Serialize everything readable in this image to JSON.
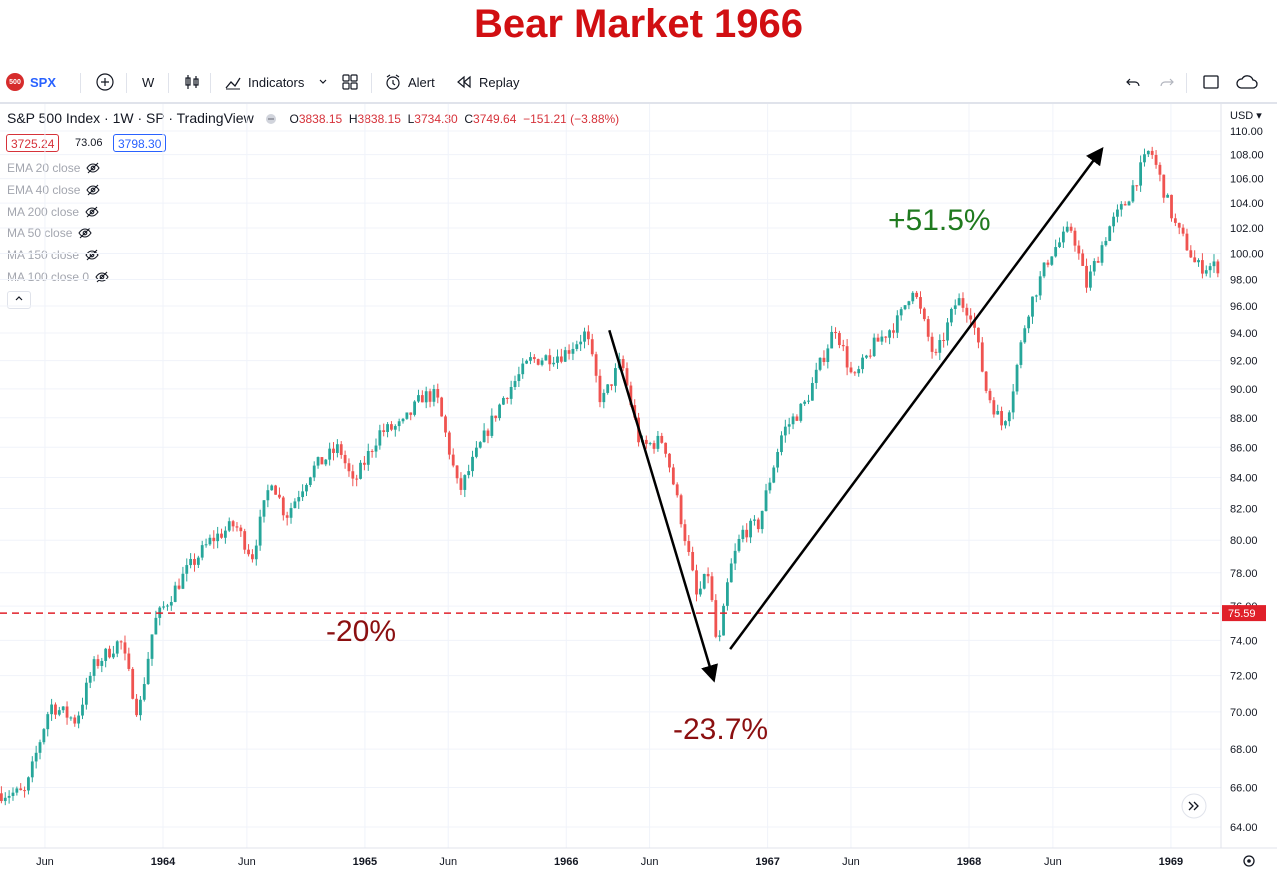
{
  "headline": "Bear Market 1966",
  "toolbar": {
    "symbol_badge": "500",
    "symbol": "SPX",
    "interval": "W",
    "indicators_label": "Indicators",
    "alert_label": "Alert",
    "replay_label": "Replay",
    "icons": [
      "add-symbol-icon",
      "bar-style-icon",
      "indicators-icon",
      "templates-icon",
      "alert-icon",
      "replay-icon",
      "undo-icon",
      "redo-icon",
      "fullscreen-icon",
      "cloud-icon"
    ]
  },
  "legend": {
    "title": "S&P 500 Index · 1W · SP · TradingView",
    "o_label": "O",
    "o": "3838.15",
    "h_label": "H",
    "h": "3838.15",
    "l_label": "L",
    "l": "3734.30",
    "c_label": "C",
    "c": "3749.64",
    "change": "−151.21 (−3.88%)",
    "bid": "3725.24",
    "spread": "73.06",
    "ask": "3798.30"
  },
  "indicators": [
    "EMA 20 close",
    "EMA 40 close",
    "MA 200 close",
    "MA 50 close",
    "MA 150 close",
    "MA 100 close 0"
  ],
  "axis": {
    "currency": "USD",
    "price_ticks": [
      "110.00",
      "108.00",
      "106.00",
      "104.00",
      "102.00",
      "100.00",
      "98.00",
      "96.00",
      "94.00",
      "92.00",
      "90.00",
      "88.00",
      "86.00",
      "84.00",
      "82.00",
      "80.00",
      "78.00",
      "76.00",
      "74.00",
      "72.00",
      "70.00",
      "68.00",
      "66.00",
      "64.00"
    ],
    "time_ticks": [
      "Jun",
      "1964",
      "Jun",
      "1965",
      "Jun",
      "1966",
      "Jun",
      "1967",
      "Jun",
      "1968",
      "Jun",
      "1969"
    ]
  },
  "annotations": {
    "threshold_label": "-20%",
    "decline_label": "-23.7%",
    "rally_label": "+51.5%",
    "threshold_price": "75.59"
  },
  "colors": {
    "up": "#26a69a",
    "down": "#ef5350",
    "headline": "#d10f12",
    "threshold": "#e0202a",
    "rally": "#1f7a1f",
    "decline": "#8b0f10",
    "symbol": "#2962ff"
  },
  "chart_data": {
    "type": "candlestick",
    "title": "S&P 500 Index · 1W · SP",
    "x_range": [
      "1963-05",
      "1969-02"
    ],
    "ylim": [
      63,
      110.6
    ],
    "yscale": "log",
    "grid": true,
    "threshold_line": 75.59,
    "path": [
      [
        "1963-05-01",
        65.7
      ],
      [
        "1963-06-15",
        70.4
      ],
      [
        "1963-08-01",
        69.5
      ],
      [
        "1963-09-01",
        72.5
      ],
      [
        "1963-10-20",
        74.0
      ],
      [
        "1963-11-22",
        69.8
      ],
      [
        "1963-12-20",
        75.0
      ],
      [
        "1964-02-15",
        78.0
      ],
      [
        "1964-04-01",
        80.0
      ],
      [
        "1964-05-15",
        81.0
      ],
      [
        "1964-06-15",
        79.0
      ],
      [
        "1964-07-20",
        84.0
      ],
      [
        "1964-08-15",
        81.5
      ],
      [
        "1964-10-01",
        84.5
      ],
      [
        "1964-11-20",
        86.0
      ],
      [
        "1964-12-15",
        83.5
      ],
      [
        "1965-02-01",
        87.0
      ],
      [
        "1965-03-15",
        87.5
      ],
      [
        "1965-04-20",
        89.5
      ],
      [
        "1965-05-15",
        89.5
      ],
      [
        "1965-06-25",
        83.0
      ],
      [
        "1965-08-01",
        86.0
      ],
      [
        "1965-09-15",
        89.5
      ],
      [
        "1965-11-01",
        92.0
      ],
      [
        "1966-01-01",
        92.5
      ],
      [
        "1966-02-10",
        94.0
      ],
      [
        "1966-03-10",
        89.0
      ],
      [
        "1966-04-15",
        92.0
      ],
      [
        "1966-05-20",
        86.0
      ],
      [
        "1966-07-01",
        86.5
      ],
      [
        "1966-08-10",
        80.0
      ],
      [
        "1966-08-30",
        76.5
      ],
      [
        "1966-09-20",
        78.0
      ],
      [
        "1966-10-07",
        73.2
      ],
      [
        "1966-10-28",
        78.0
      ],
      [
        "1966-11-20",
        80.5
      ],
      [
        "1966-12-20",
        81.0
      ],
      [
        "1967-02-01",
        87.0
      ],
      [
        "1967-03-15",
        89.0
      ],
      [
        "1967-05-08",
        94.5
      ],
      [
        "1967-06-10",
        90.5
      ],
      [
        "1967-07-15",
        93.0
      ],
      [
        "1967-09-01",
        95.0
      ],
      [
        "1967-09-25",
        97.5
      ],
      [
        "1967-11-05",
        92.0
      ],
      [
        "1967-12-15",
        96.5
      ],
      [
        "1968-01-10",
        95.5
      ],
      [
        "1968-02-05",
        90.0
      ],
      [
        "1968-03-05",
        87.5
      ],
      [
        "1968-03-20",
        89.0
      ],
      [
        "1968-04-20",
        95.5
      ],
      [
        "1968-06-01",
        100.0
      ],
      [
        "1968-07-10",
        102.0
      ],
      [
        "1968-08-05",
        97.5
      ],
      [
        "1968-09-15",
        102.0
      ],
      [
        "1968-10-15",
        104.0
      ],
      [
        "1968-11-29",
        108.5
      ],
      [
        "1968-12-31",
        104.0
      ],
      [
        "1969-01-15",
        102.0
      ],
      [
        "1969-02-05",
        100.5
      ],
      [
        "1969-02-20",
        99.0
      ]
    ]
  }
}
